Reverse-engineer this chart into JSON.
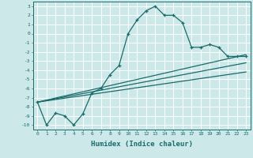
{
  "xlabel": "Humidex (Indice chaleur)",
  "bg_color": "#cce8e8",
  "grid_color": "#ffffff",
  "line_color": "#1a6b6b",
  "xlim": [
    -0.5,
    23.5
  ],
  "ylim": [
    -10.5,
    3.5
  ],
  "yticks": [
    3,
    2,
    1,
    0,
    -1,
    -2,
    -3,
    -4,
    -5,
    -6,
    -7,
    -8,
    -9,
    -10
  ],
  "xticks": [
    0,
    1,
    2,
    3,
    4,
    5,
    6,
    7,
    8,
    9,
    10,
    11,
    12,
    13,
    14,
    15,
    16,
    17,
    18,
    19,
    20,
    21,
    22,
    23
  ],
  "line1_x": [
    0,
    1,
    2,
    3,
    4,
    5,
    6,
    7,
    8,
    9,
    10,
    11,
    12,
    13,
    14,
    15,
    16,
    17,
    18,
    19,
    20,
    21,
    22,
    23
  ],
  "line1_y": [
    -7.5,
    -10.0,
    -8.7,
    -9.0,
    -10.0,
    -8.8,
    -6.5,
    -6.0,
    -4.5,
    -3.5,
    0.0,
    1.5,
    2.5,
    3.0,
    2.0,
    2.0,
    1.2,
    -1.5,
    -1.5,
    -1.2,
    -1.5,
    -2.5,
    -2.5,
    -2.5
  ],
  "line2_x": [
    0,
    23
  ],
  "line2_y": [
    -7.5,
    -2.3
  ],
  "line3_x": [
    0,
    23
  ],
  "line3_y": [
    -7.5,
    -3.2
  ],
  "line4_x": [
    0,
    23
  ],
  "line4_y": [
    -7.5,
    -4.2
  ]
}
